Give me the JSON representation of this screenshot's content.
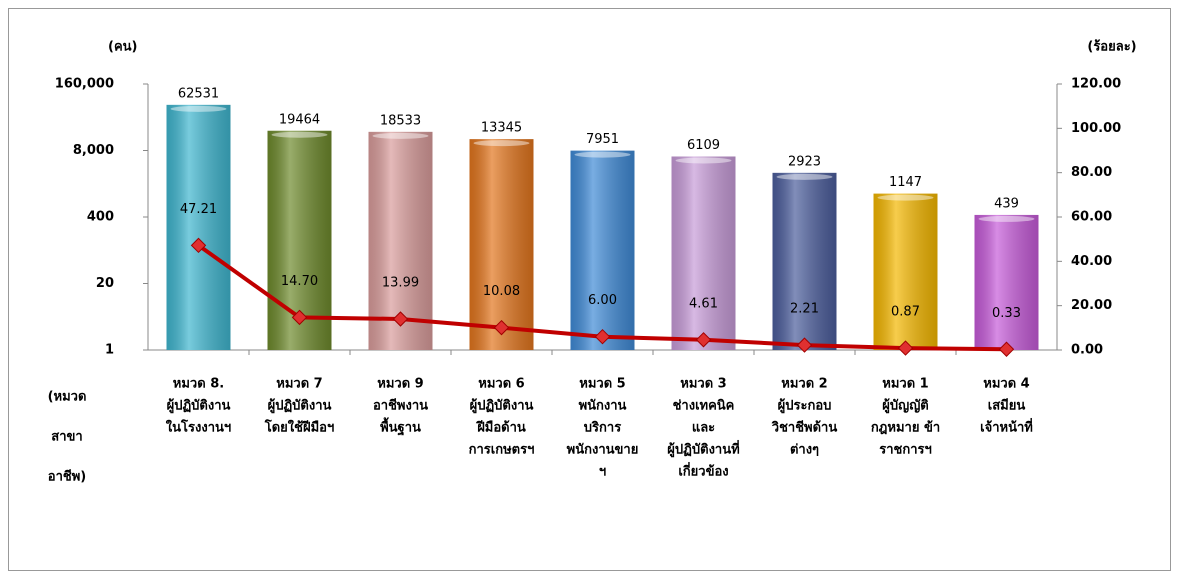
{
  "chart_data": {
    "type": "bar",
    "y_label": "(คน)",
    "y2_label": "(ร้อยละ)",
    "x_label": [
      "(หมวด",
      "สาขา",
      "อาชีพ)"
    ],
    "categories": [
      [
        "หมวด 8.",
        "ผู้ปฏิบัติงาน",
        "ในโรงงานฯ"
      ],
      [
        "หมวด 7",
        "ผู้ปฏิบัติงาน",
        "โดยใช้ฝีมือฯ"
      ],
      [
        "หมวด 9",
        "อาชีพงาน",
        "พื้นฐาน"
      ],
      [
        "หมวด 6",
        "ผู้ปฏิบัติงาน",
        "ฝีมือด้าน",
        "การเกษตรฯ"
      ],
      [
        "หมวด 5",
        "พนักงาน",
        "บริการ",
        "พนักงานขาย",
        "ฯ"
      ],
      [
        "หมวด 3",
        "ช่างเทคนิค",
        "และ",
        "ผู้ปฏิบัติงานที่",
        "เกี่ยวข้อง"
      ],
      [
        "หมวด 2",
        "ผู้ประกอบ",
        "วิชาชีพด้าน",
        "ต่างๆ"
      ],
      [
        "หมวด 1",
        "ผู้บัญญัติ",
        "กฎหมาย ข้า",
        "ราชการฯ"
      ],
      [
        "หมวด 4",
        "เสมียน",
        "เจ้าหน้าที่"
      ]
    ],
    "series": [
      {
        "type": "bar",
        "colors": [
          "#3fb6cf",
          "#6e8a2c",
          "#d99c9b",
          "#e2751d",
          "#3f8ad6",
          "#c79bd8",
          "#4b5d9c",
          "#f4b700",
          "#c65bd9"
        ],
        "values": [
          62531,
          19464,
          18533,
          13345,
          7951,
          6109,
          2923,
          1147,
          439
        ]
      },
      {
        "type": "line",
        "axis": "y2",
        "color": "#c00000",
        "values": [
          47.21,
          14.7,
          13.99,
          10.08,
          6.0,
          4.61,
          2.21,
          0.87,
          0.33
        ],
        "value_labels": [
          "47.21",
          "14.70",
          "13.99",
          "10.08",
          "6.00",
          "4.61",
          "2.21",
          "0.87",
          "0.33"
        ]
      }
    ],
    "log_y": true,
    "ylim": [
      1,
      160000
    ],
    "yticks": [
      1,
      20,
      400,
      {
        "value": 8000,
        "label": "8,000"
      },
      {
        "value": 160000,
        "label": "160,000"
      }
    ],
    "y2lim": [
      0,
      120
    ],
    "y2ticks": [
      {
        "value": 0,
        "label": "0.00"
      },
      {
        "value": 20,
        "label": "20.00"
      },
      {
        "value": 40,
        "label": "40.00"
      },
      {
        "value": 60,
        "label": "60.00"
      },
      {
        "value": 80,
        "label": "80.00"
      },
      {
        "value": 100,
        "label": "100.00"
      },
      {
        "value": 120,
        "label": "120.00"
      }
    ]
  }
}
